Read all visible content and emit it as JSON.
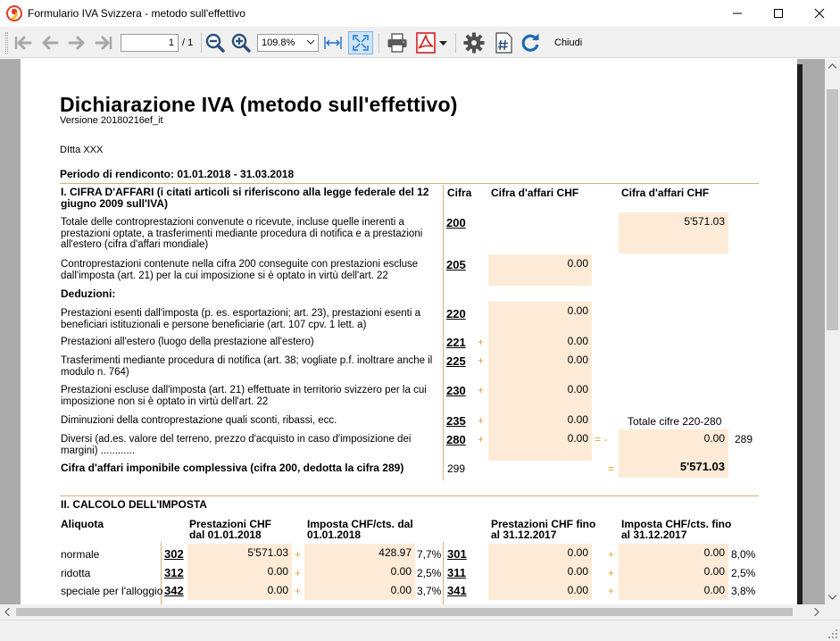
{
  "window": {
    "title": "Formulario IVA Svizzera - metodo sull'effettivo",
    "app_icon": "app-logo-icon",
    "controls": [
      "minimize-icon",
      "maximize-icon",
      "close-icon"
    ]
  },
  "toolbar": {
    "nav_icons": [
      "first-page-icon",
      "previous-page-icon",
      "next-page-icon",
      "last-page-icon"
    ],
    "page_current": "1",
    "page_total": "/ 1",
    "zoom_icons": [
      "zoom-out-icon",
      "zoom-in-icon"
    ],
    "zoom_value": "109.8%",
    "fit_icons": [
      "fit-width-icon",
      "fit-page-icon"
    ],
    "print_icon": "printer-icon",
    "pdf_icon": "pdf-icon",
    "settings_icon": "gear-icon",
    "numbering_icon": "hash-icon",
    "refresh_icon": "refresh-icon",
    "close_label": "Chiudi"
  },
  "document": {
    "title": "Dichiarazione IVA (metodo sull'effettivo)",
    "version": "Versione 20180216ef_it",
    "company": "DItta XXX",
    "period": "Periodo di rendiconto: 01.01.2018 - 31.03.2018",
    "section1": {
      "title": "I. CIFRA D'AFFARI (i citati articoli si riferiscono alla legge federale del 12 giugno 2009 sull'IVA)",
      "col_cifra": "Cifra",
      "col_chf1": "Cifra d'affari CHF",
      "col_chf2": "Cifra d'affari CHF",
      "rows": [
        {
          "label": "Totale delle controprestazioni convenute o ricevute, incluse quelle inerenti a prestazioni optate, a trasferimenti mediante procedura di notifica e a prestazioni all'estero (cifra d'affari mondiale)",
          "code": "200",
          "value2": "5'571.03"
        },
        {
          "label": "Controprestazioni contenute nella cifra 200 conseguite con prestazioni escluse dall'imposta (art. 21) per la cui imposizione si è optato in virtù dell'art. 22",
          "code": "205",
          "value1": "0.00"
        },
        {
          "label": "Deduzioni:"
        },
        {
          "label": "Prestazioni esenti dall'imposta (p. es. esportazioni; art. 23), prestazioni esenti a beneficiari istituzionali e persone beneficiarie (art. 107 cpv. 1 lett. a)",
          "code": "220",
          "value1": "0.00"
        },
        {
          "label": "Prestazioni all'estero (luogo della prestazione all'estero)",
          "code": "221",
          "op": "+",
          "value1": "0.00"
        },
        {
          "label": "Trasferimenti mediante procedura di notifica (art. 38; vogliate p.f. inoltrare anche il modulo n. 764)",
          "code": "225",
          "op": "+",
          "value1": "0.00"
        },
        {
          "label": "Prestazioni escluse dall'imposta (art. 21) effettuate in territorio svizzero per la cui imposizione non si è optato in virtù dell'art. 22",
          "code": "230",
          "op": "+",
          "value1": "0.00"
        },
        {
          "label": "Diminuzioni della controprestazione quali sconti, ribassi, ecc.",
          "code": "235",
          "op": "+",
          "value1": "0.00",
          "note": "Totale cifre 220-280"
        },
        {
          "label": "Diversi (ad.es. valore del terreno, prezzo d'acquisto in caso d'imposizione dei margini) ............",
          "code": "280",
          "op": "+",
          "value1": "0.00",
          "op2": "= -",
          "value2": "0.00",
          "ref": "289"
        },
        {
          "label": "Cifra d'affari imponibile complessiva (cifra 200, dedotta la cifra 289)",
          "code": "299",
          "op2": "=",
          "value2": "5'571.03"
        }
      ]
    },
    "section2": {
      "title": "II. CALCOLO DELL'IMPOSTA",
      "col_aliquota": "Aliquota",
      "col_prest_from": "Prestazioni CHF dal 01.01.2018",
      "col_imp_from": "Imposta CHF/cts. dal 01.01.2018",
      "col_prest_to": "Prestazioni CHF fino al 31.12.2017",
      "col_imp_to": "Imposta CHF/cts. fino al 31.12.2017",
      "rows": [
        {
          "label": "normale",
          "code1": "302",
          "prest1": "5'571.03",
          "op1": "+",
          "imp1": "428.97",
          "rate1": "7,7%",
          "code2": "301",
          "prest2": "0.00",
          "op2": "+",
          "imp2": "0.00",
          "rate2": "8,0%"
        },
        {
          "label": "ridotta",
          "code1": "312",
          "prest1": "0.00",
          "op1": "+",
          "imp1": "0.00",
          "rate1": "2,5%",
          "code2": "311",
          "prest2": "0.00",
          "op2": "+",
          "imp2": "0.00",
          "rate2": "2,5%"
        },
        {
          "label": "speciale per l'alloggio",
          "code1": "342",
          "prest1": "0.00",
          "op1": "+",
          "imp1": "0.00",
          "rate1": "3,7%",
          "code2": "341",
          "prest2": "0.00",
          "op2": "+",
          "imp2": "0.00",
          "rate2": "3,8%"
        }
      ]
    }
  }
}
